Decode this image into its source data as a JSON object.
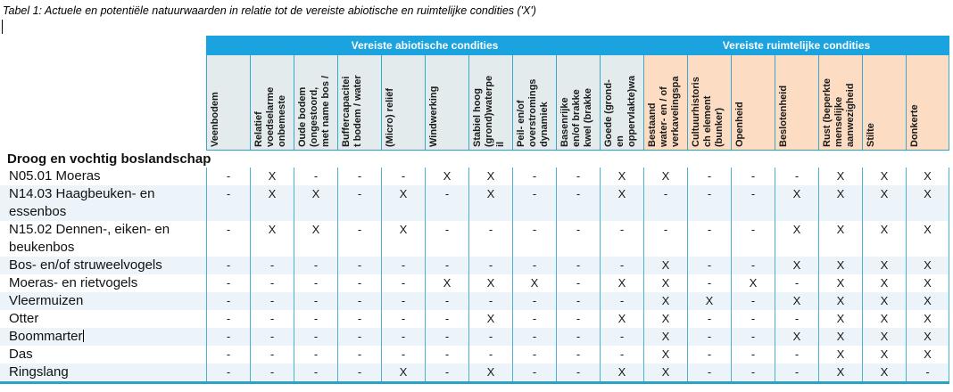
{
  "title": "Tabel 1: Actuele en potentiële natuurwaarden in relatie tot de vereiste abiotische en ruimtelijke condities ('X')",
  "groups": [
    {
      "label": "Vereiste abiotische condities",
      "span": 10
    },
    {
      "label": "Vereiste ruimtelijke condities",
      "span": 7
    }
  ],
  "columns": [
    {
      "label": "Veenbodem",
      "group": "abiotic"
    },
    {
      "label": "Relatief\nvoedselarme\nonbemeste",
      "group": "abiotic"
    },
    {
      "label": "Oude bodem\n(ongestoord,\nmet name bos /",
      "group": "abiotic"
    },
    {
      "label": "Buffercapacitei\nt bodem / water",
      "group": "abiotic"
    },
    {
      "label": "(Micro) reliëf",
      "group": "abiotic"
    },
    {
      "label": "Windwerking",
      "group": "abiotic"
    },
    {
      "label": "Stabiel hoog\n(grond)waterpe\nil",
      "group": "abiotic"
    },
    {
      "label": "Peil- en/of\noverstromings\ndynamiek",
      "group": "abiotic"
    },
    {
      "label": "Basenrijke\nen/of brakke\nkwel (brakke",
      "group": "abiotic"
    },
    {
      "label": "Goede (grond-\nen\noppervlakte)wa",
      "group": "abiotic"
    },
    {
      "label": "Bestaand\nwater- en / of\nverkavelingspa",
      "group": "spatial"
    },
    {
      "label": "Cultuurhistoris\nch element\n(bunker)",
      "group": "spatial"
    },
    {
      "label": "Openheid",
      "group": "spatial"
    },
    {
      "label": "Beslotenheid",
      "group": "spatial"
    },
    {
      "label": "Rust (beperkte\nmenselijke\naanwezigheid",
      "group": "spatial"
    },
    {
      "label": "Stilte",
      "group": "spatial"
    },
    {
      "label": "Donkerte",
      "group": "spatial"
    }
  ],
  "section": "Droog en vochtig boslandschap",
  "rows": [
    {
      "label": "N05.01 Moeras",
      "values": [
        "-",
        "X",
        "-",
        "-",
        "-",
        "X",
        "X",
        "-",
        "-",
        "X",
        "X",
        "-",
        "-",
        "-",
        "X",
        "X",
        "X"
      ]
    },
    {
      "label": "N14.03 Haagbeuken- en\nessenbos",
      "values": [
        "-",
        "X",
        "X",
        "-",
        "X",
        "-",
        "X",
        "-",
        "-",
        "X",
        "-",
        "-",
        "-",
        "X",
        "X",
        "X",
        "X"
      ]
    },
    {
      "label": "N15.02 Dennen-, eiken- en\nbeukenbos",
      "values": [
        "-",
        "X",
        "X",
        "-",
        "X",
        "-",
        "-",
        "-",
        "-",
        "-",
        "-",
        "-",
        "-",
        "X",
        "X",
        "X",
        "X"
      ]
    },
    {
      "label": "Bos- en/of struweelvogels",
      "values": [
        "-",
        "-",
        "-",
        "-",
        "-",
        "-",
        "-",
        "-",
        "-",
        "-",
        "X",
        "-",
        "-",
        "X",
        "X",
        "X",
        "X"
      ]
    },
    {
      "label": "Moeras- en rietvogels",
      "values": [
        "-",
        "-",
        "-",
        "-",
        "-",
        "X",
        "X",
        "X",
        "-",
        "X",
        "X",
        "-",
        "X",
        "-",
        "X",
        "X",
        "X"
      ]
    },
    {
      "label": "Vleermuizen",
      "values": [
        "-",
        "-",
        "-",
        "-",
        "-",
        "-",
        "-",
        "-",
        "-",
        "-",
        "X",
        "X",
        "-",
        "X",
        "X",
        "X",
        "X"
      ]
    },
    {
      "label": "Otter",
      "values": [
        "-",
        "-",
        "-",
        "-",
        "-",
        "-",
        "X",
        "-",
        "-",
        "X",
        "X",
        "-",
        "-",
        "-",
        "X",
        "X",
        "X"
      ]
    },
    {
      "label": "Boommarter",
      "values": [
        "-",
        "-",
        "-",
        "-",
        "-",
        "-",
        "-",
        "-",
        "-",
        "-",
        "X",
        "-",
        "-",
        "X",
        "X",
        "X",
        "X"
      ]
    },
    {
      "label": "Das",
      "values": [
        "-",
        "-",
        "-",
        "-",
        "-",
        "-",
        "-",
        "-",
        "-",
        "-",
        "X",
        "-",
        "-",
        "-",
        "X",
        "X",
        "X"
      ]
    },
    {
      "label": "Ringslang",
      "values": [
        "-",
        "-",
        "-",
        "-",
        "X",
        "-",
        "X",
        "-",
        "-",
        "X",
        "X",
        "-",
        "-",
        "-",
        "X",
        "X",
        "-"
      ]
    }
  ],
  "cursor": {
    "row_index": 7
  },
  "colors": {
    "band_blue": "#1aa3de",
    "abiotic_header_fill": "#e3ebed",
    "spatial_header_fill": "#fcdcc2",
    "grid_line": "#3aa8c9",
    "bottom_line": "#2ba4c4",
    "row_stripe": "#ecf4fa"
  }
}
